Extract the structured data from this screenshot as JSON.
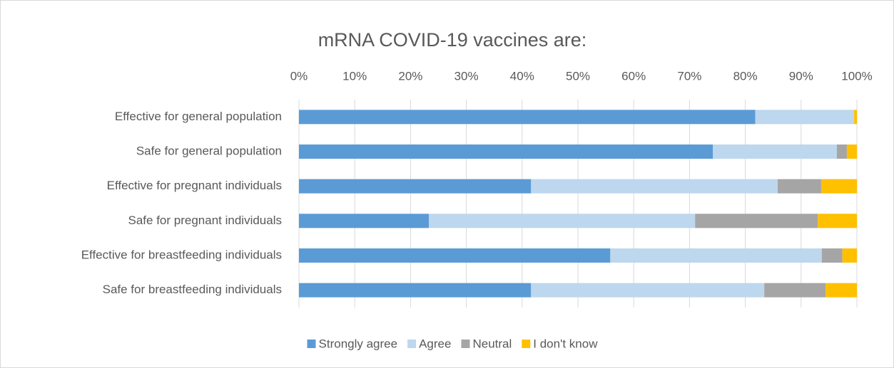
{
  "chart_data": {
    "type": "stacked-bar-horizontal",
    "title": "mRNA COVID-19 vaccines are:",
    "categories": [
      "Effective for general population",
      "Safe for general population",
      "Effective for pregnant individuals",
      "Safe for pregnant individuals",
      "Effective for breastfeeding individuals",
      "Safe for breastfeeding individuals"
    ],
    "series": [
      {
        "name": "Strongly agree",
        "color": "#5b9bd5",
        "values": [
          81.8,
          74.2,
          41.6,
          23.3,
          55.8,
          41.6
        ]
      },
      {
        "name": "Agree",
        "color": "#bdd7ee",
        "values": [
          17.7,
          22.2,
          44.2,
          47.7,
          37.9,
          41.8
        ]
      },
      {
        "name": "Neutral",
        "color": "#a5a5a5",
        "values": [
          0,
          1.8,
          7.8,
          22,
          3.7,
          11
        ]
      },
      {
        "name": "I don't know",
        "color": "#ffc000",
        "values": [
          0.5,
          1.8,
          6.4,
          7,
          2.6,
          5.6
        ]
      }
    ],
    "xlim": [
      0,
      100
    ],
    "xticks": [
      {
        "value": 0,
        "label": "0%"
      },
      {
        "value": 10,
        "label": "10%"
      },
      {
        "value": 20,
        "label": "20%"
      },
      {
        "value": 30,
        "label": "30%"
      },
      {
        "value": 40,
        "label": "40%"
      },
      {
        "value": 50,
        "label": "50%"
      },
      {
        "value": 60,
        "label": "60%"
      },
      {
        "value": 70,
        "label": "70%"
      },
      {
        "value": 80,
        "label": "80%"
      },
      {
        "value": 90,
        "label": "90%"
      },
      {
        "value": 100,
        "label": "100%"
      }
    ],
    "grid": true,
    "legend": "bottom"
  }
}
